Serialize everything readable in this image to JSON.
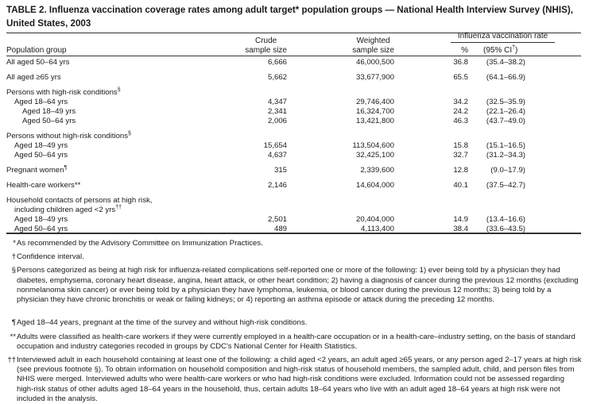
{
  "title": "TABLE 2. Influenza vaccination coverage rates among adult target* population groups — National Health Interview Survey (NHIS), United States, 2003",
  "headers": {
    "group": "Population group",
    "crude": [
      "Crude",
      "sample size"
    ],
    "weighted": [
      "Weighted",
      "sample size"
    ],
    "rate_group": "Influenza vaccination rate",
    "pct": "%",
    "ci": "(95% CI",
    "ci_mark": "†",
    "ci_close": ")"
  },
  "rows": [
    {
      "label": "All aged 50–64 yrs",
      "crude": "6,666",
      "weighted": "46,000,500",
      "pct": "36.8",
      "ci": "(35.4–38.2)"
    },
    {
      "label": "All aged ≥65 yrs",
      "crude": "5,662",
      "weighted": "33,677,900",
      "pct": "65.5",
      "ci": "(64.1–66.9)"
    },
    {
      "label": "Persons with high-risk conditions",
      "mark": "§"
    },
    {
      "label": "Aged 18–64 yrs",
      "crude": "4,347",
      "weighted": "29,746,400",
      "pct": "34.2",
      "ci": "(32.5–35.9)"
    },
    {
      "label": "Aged 18–49 yrs",
      "crude": "2,341",
      "weighted": "16,324,700",
      "pct": "24.2",
      "ci": "(22.1–26.4)"
    },
    {
      "label": "Aged 50–64 yrs",
      "crude": "2,006",
      "weighted": "13,421,800",
      "pct": "46.3",
      "ci": "(43.7–49.0)"
    },
    {
      "label": "Persons without high-risk conditions",
      "mark": "§"
    },
    {
      "label": "Aged 18–49 yrs",
      "crude": "15,654",
      "weighted": "113,504,600",
      "pct": "15.8",
      "ci": "(15.1–16.5)"
    },
    {
      "label": "Aged 50–64 yrs",
      "crude": "4,637",
      "weighted": "32,425,100",
      "pct": "32.7",
      "ci": "(31.2–34.3)"
    },
    {
      "label": "Pregnant women",
      "mark": "¶",
      "crude": "315",
      "weighted": "2,339,600",
      "pct": "12.8",
      "ci": "(9.0–17.9)"
    },
    {
      "label": "Health-care workers**",
      "crude": "2,146",
      "weighted": "14,604,000",
      "pct": "40.1",
      "ci": "(37.5–42.7)"
    },
    {
      "label": "Household contacts of persons at high risk,"
    },
    {
      "label": "including children aged <2 yrs",
      "mark": "††"
    },
    {
      "label": "Aged 18–49 yrs",
      "crude": "2,501",
      "weighted": "20,404,000",
      "pct": "14.9",
      "ci": "(13.4–16.6)"
    },
    {
      "label": "Aged 50–64 yrs",
      "crude": "489",
      "weighted": "4,113,400",
      "pct": "38.4",
      "ci": "(33.6–43.5)"
    }
  ],
  "footnotes": [
    {
      "mark": "*",
      "text": "As recommended by the Advisory Committee on Immunization Practices."
    },
    {
      "mark": "†",
      "text": "Confidence interval."
    },
    {
      "mark": "§",
      "text": "Persons categorized as being at high risk for influenza-related complications self-reported one or more of the following: 1) ever being told by a physician they had diabetes, emphysema, coronary heart disease, angina, heart attack, or other heart condition; 2) having a diagnosis of cancer during the previous 12 months (excluding nonmelanoma skin cancer) or ever being told by a physician they have lymphoma, leukemia, or blood cancer during the previous 12 months; 3) being told by a physician they have chronic bronchitis or weak or failing kidneys; or 4) reporting an asthma episode or attack during the preceding 12 months."
    },
    {
      "mark": "¶",
      "text": "Aged 18–44 years, pregnant at the time of the survey and without high-risk conditions."
    },
    {
      "mark": "**",
      "text": "Adults were classified as health-care workers if they were currently employed in a health-care occupation or in a health-care–industry setting, on the basis of standard occupation and industry categories recoded in groups by CDC's National Center for Health Statistics."
    },
    {
      "mark": "††",
      "text": "Interviewed adult in each household containing at least one of the following: a child aged <2 years, an adult aged ≥65 years, or any person aged 2–17 years at high risk (see previous footnote §). To obtain information on household composition and high-risk status of household members, the sampled adult, child, and person files from NHIS were merged. Interviewed adults who were health-care workers or who had high-risk conditions were excluded. Information could not be assessed regarding high-risk status of other adults aged 18–64 years in the household, thus, certain adults 18–64 years who live with an adult aged 18–64 years at high risk were not included in the analysis."
    }
  ]
}
